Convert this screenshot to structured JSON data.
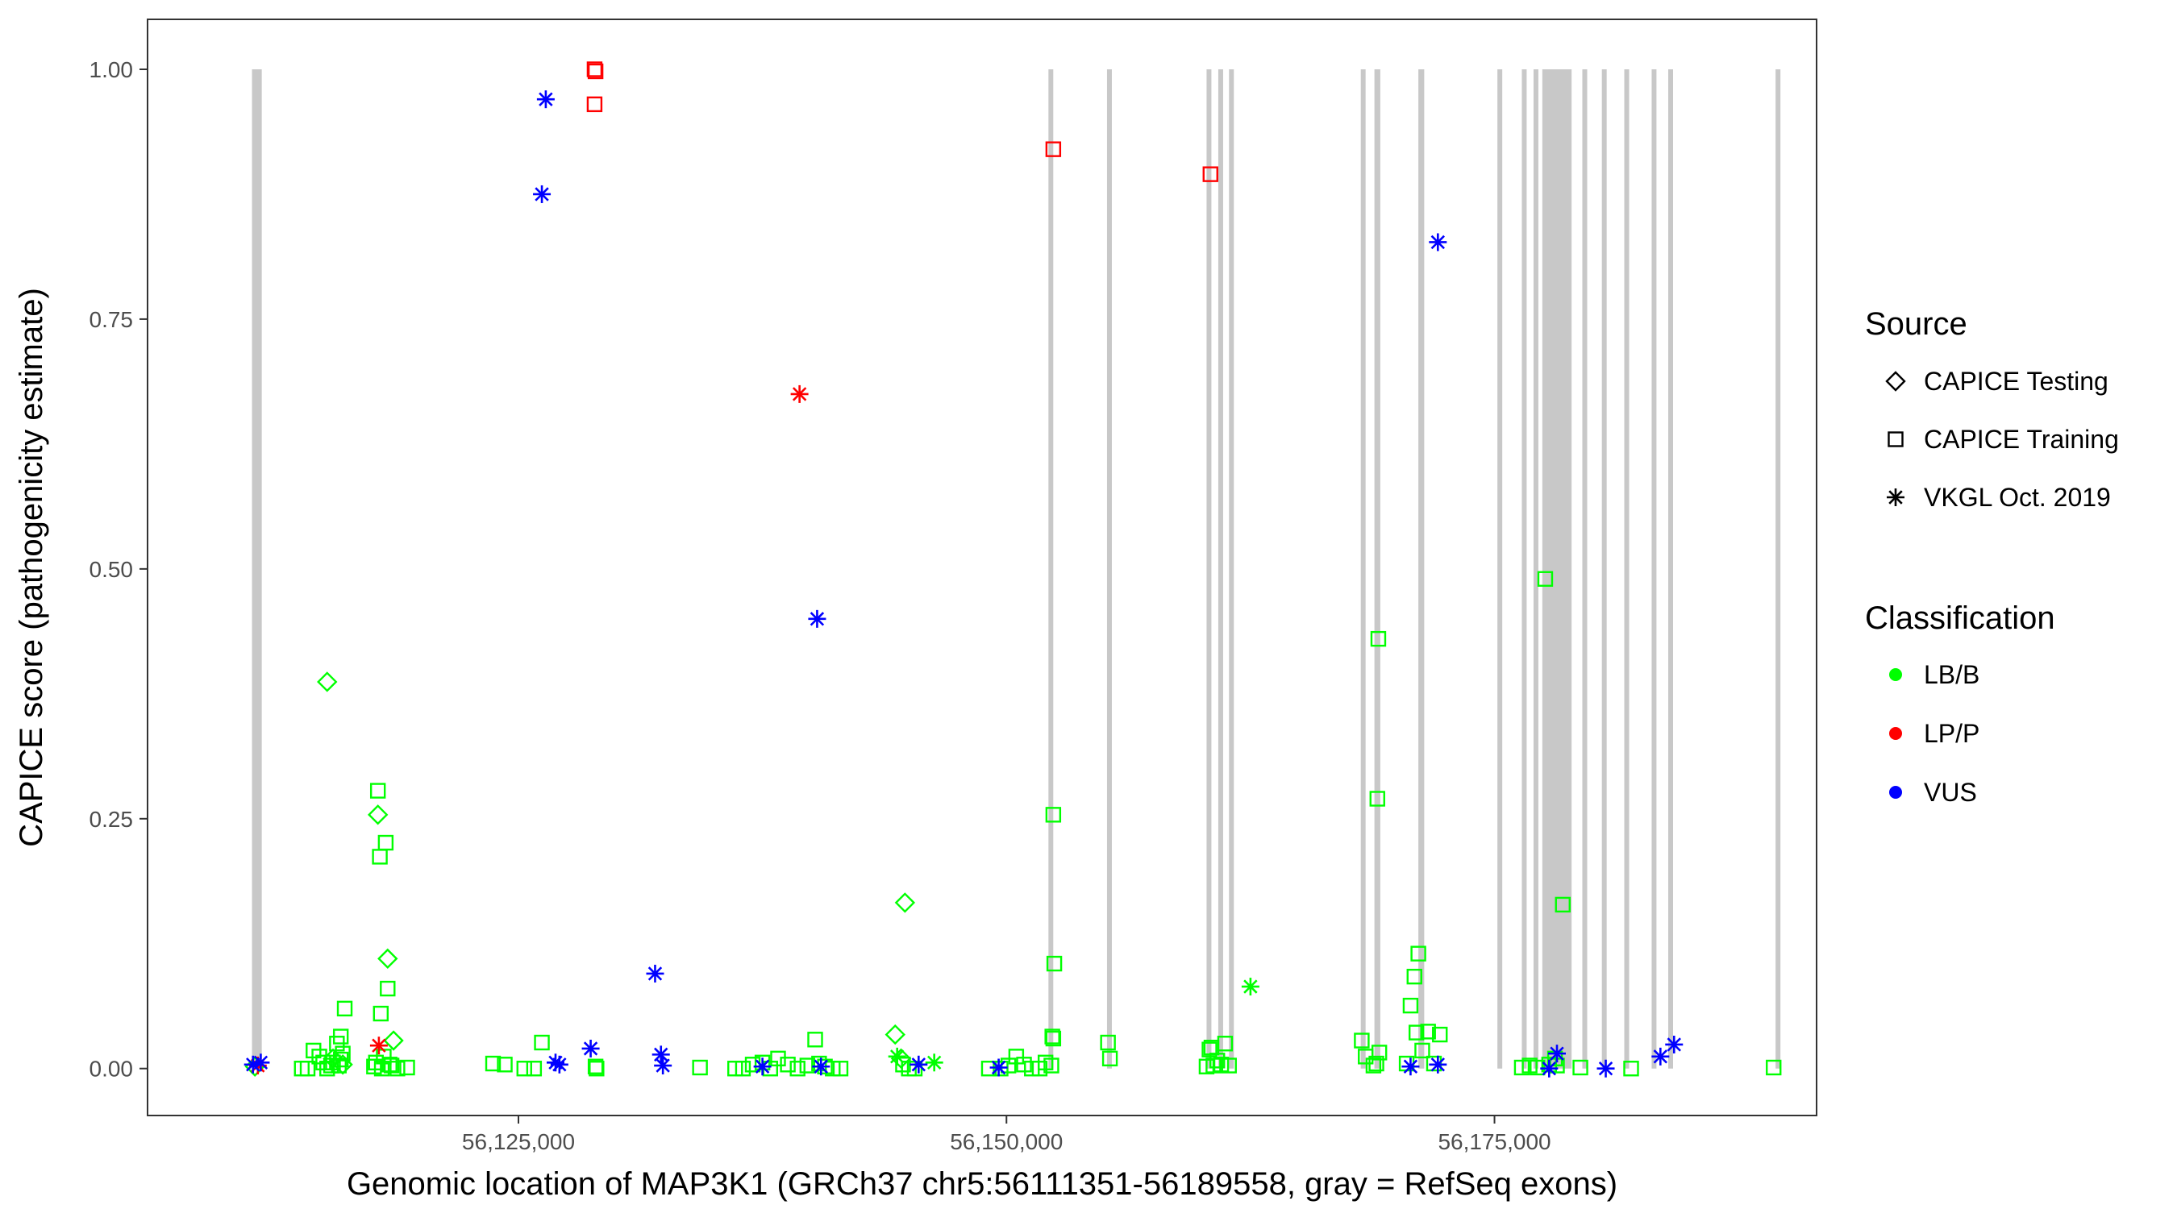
{
  "chart_data": {
    "type": "scatter",
    "title": "",
    "xlabel": "Genomic location of MAP3K1 (GRCh37 chr5:56111351-56189558, gray = RefSeq exons)",
    "ylabel": "CAPICE score (pathogenicity estimate)",
    "xlim": [
      56106000,
      56191500
    ],
    "ylim": [
      -0.047,
      1.05
    ],
    "x_ticks": [
      56125000,
      56150000,
      56175000
    ],
    "x_tick_labels": [
      "56,125,000",
      "56,150,000",
      "56,175,000"
    ],
    "y_ticks": [
      0,
      0.25,
      0.5,
      0.75,
      1.0
    ],
    "y_tick_labels": [
      "0.00",
      "0.25",
      "0.50",
      "0.75",
      "1.00"
    ],
    "grid": false,
    "legend_position": "right",
    "exon_color": "#c8c8c8",
    "exons": [
      [
        56111351,
        56111850
      ],
      [
        56152150,
        56152350
      ],
      [
        56155150,
        56155300
      ],
      [
        56160250,
        56160450
      ],
      [
        56160850,
        56160990
      ],
      [
        56161400,
        56161550
      ],
      [
        56168150,
        56168350
      ],
      [
        56168850,
        56169150
      ],
      [
        56171100,
        56171400
      ],
      [
        56175150,
        56175300
      ],
      [
        56176400,
        56176550
      ],
      [
        56177000,
        56177150
      ],
      [
        56177450,
        56178950
      ],
      [
        56179500,
        56179650
      ],
      [
        56180500,
        56180650
      ],
      [
        56181650,
        56181800
      ],
      [
        56183050,
        56183200
      ],
      [
        56183900,
        56184050
      ],
      [
        56189400,
        56189558
      ]
    ],
    "legend": {
      "source_title": "Source",
      "source_items": [
        {
          "shape": "diamond",
          "label": "CAPICE Testing"
        },
        {
          "shape": "square",
          "label": "CAPICE Training"
        },
        {
          "shape": "asterisk",
          "label": "VKGL Oct. 2019"
        }
      ],
      "class_title": "Classification",
      "class_items": [
        {
          "color": "#00ff00",
          "label": "LB/B"
        },
        {
          "color": "#ff0000",
          "label": "LP/P"
        },
        {
          "color": "#0000ff",
          "label": "VUS"
        }
      ]
    },
    "series": [
      {
        "source": "CAPICE Training",
        "classification": "LP/P",
        "x": [
          56128900,
          56128950,
          56128900,
          56152400,
          56160450
        ],
        "y": [
          1.0,
          0.998,
          0.965,
          0.92,
          0.895
        ]
      },
      {
        "source": "VKGL Oct. 2019",
        "classification": "LP/P",
        "x": [
          56111650,
          56117850,
          56139400
        ],
        "y": [
          0.003,
          0.023,
          0.675
        ]
      },
      {
        "source": "VKGL Oct. 2019",
        "classification": "VUS",
        "x": [
          56111400,
          56111800,
          56126400,
          56126200,
          56140300,
          56132000,
          56172100,
          56126900,
          56127100,
          56128700,
          56132300,
          56132400,
          56137500,
          56140500,
          56145500,
          56149600,
          56170700,
          56172100,
          56178200,
          56180700,
          56183500,
          56184200,
          56177800
        ],
        "y": [
          0.004,
          0.006,
          0.97,
          0.875,
          0.45,
          0.095,
          0.827,
          0.006,
          0.004,
          0.02,
          0.014,
          0.003,
          0.002,
          0.002,
          0.004,
          0.001,
          0.002,
          0.004,
          0.015,
          0.0,
          0.012,
          0.024,
          0.0
        ]
      },
      {
        "source": "VKGL Oct. 2019",
        "classification": "LB/B",
        "x": [
          56144400,
          56146300,
          56162500
        ],
        "y": [
          0.012,
          0.006,
          0.082
        ]
      },
      {
        "source": "CAPICE Testing",
        "classification": "LB/B",
        "x": [
          56115200,
          56117800,
          56118300,
          56144300,
          56144800,
          56111500,
          56115500,
          56116000,
          56118600,
          56144600
        ],
        "y": [
          0.387,
          0.254,
          0.11,
          0.034,
          0.166,
          0.002,
          0.01,
          0.004,
          0.028,
          0.01
        ]
      },
      {
        "source": "CAPICE Training",
        "classification": "LB/B",
        "x": [
          56113900,
          56114200,
          56114500,
          56114800,
          56115000,
          56115200,
          56115500,
          56115700,
          56115900,
          56116100,
          56115800,
          56115900,
          56116000,
          56115400,
          56117800,
          56117900,
          56118200,
          56118300,
          56118400,
          56118100,
          56117950,
          56117600,
          56117700,
          56118000,
          56118500,
          56118800,
          56119300,
          56123700,
          56124300,
          56125300,
          56125800,
          56126200,
          56128950,
          56129000,
          56134300,
          56136100,
          56136500,
          56137000,
          56137500,
          56137900,
          56138300,
          56138800,
          56139300,
          56139800,
          56140200,
          56140400,
          56140700,
          56141100,
          56141500,
          56144700,
          56145000,
          56145300,
          56149100,
          56149700,
          56150100,
          56150500,
          56150900,
          56151300,
          56151700,
          56152000,
          56152300,
          56152350,
          56152400,
          56152450,
          56155200,
          56155300,
          56160250,
          56160400,
          56160600,
          56160800,
          56161000,
          56161200,
          56161400,
          56168200,
          56168400,
          56168800,
          56168950,
          56169100,
          56170500,
          56170700,
          56170900,
          56171100,
          56171300,
          56171600,
          56171900,
          56172200,
          56176400,
          56176800,
          56177200,
          56177600,
          56177800,
          56178100,
          56178500,
          56179400,
          56182000,
          56189300,
          56152400,
          56160500,
          56171000,
          56178200,
          56169000
        ],
        "y": [
          0.0,
          0.0,
          0.018,
          0.012,
          0.006,
          0.0,
          0.006,
          0.025,
          0.032,
          0.06,
          0.003,
          0.009,
          0.015,
          0.003,
          0.278,
          0.212,
          0.226,
          0.08,
          0.004,
          0.012,
          0.055,
          0.002,
          0.006,
          0.0,
          0.003,
          0.0,
          0.001,
          0.005,
          0.004,
          0.0,
          0.0,
          0.026,
          0.002,
          0.0,
          0.001,
          0.0,
          0.0,
          0.004,
          0.006,
          0.0,
          0.01,
          0.004,
          0.0,
          0.003,
          0.029,
          0.005,
          0.002,
          0.0,
          0.0,
          0.004,
          0.0,
          0.0,
          0.0,
          0.0,
          0.003,
          0.012,
          0.004,
          0.0,
          0.0,
          0.006,
          0.003,
          0.032,
          0.254,
          0.105,
          0.026,
          0.01,
          0.002,
          0.019,
          0.003,
          0.008,
          0.004,
          0.025,
          0.003,
          0.028,
          0.012,
          0.003,
          0.005,
          0.016,
          0.005,
          0.063,
          0.092,
          0.115,
          0.018,
          0.037,
          0.005,
          0.034,
          0.001,
          0.003,
          0.001,
          0.49,
          0.004,
          0.01,
          0.164,
          0.001,
          0.0,
          0.001,
          0.03,
          0.021,
          0.036,
          0.003,
          0.27
        ]
      }
    ],
    "extra_points": [
      {
        "source": "CAPICE Training",
        "classification": "LB/B",
        "x": 56169050,
        "y": 0.43
      }
    ]
  }
}
